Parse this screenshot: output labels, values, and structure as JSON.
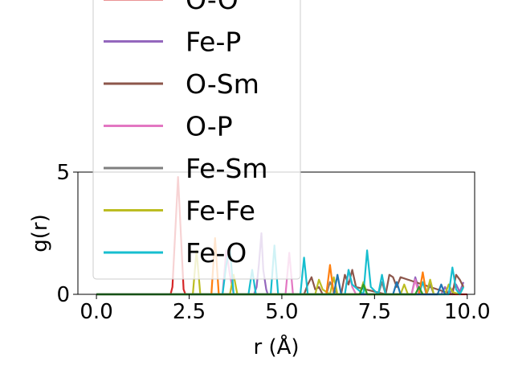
{
  "chart_data": {
    "type": "line",
    "title": "",
    "xlabel": "r (Å)",
    "ylabel": "g(r)",
    "xlim": [
      -0.5,
      10.2
    ],
    "ylim": [
      0,
      5
    ],
    "xticks": [
      "0.0",
      "2.5",
      "5.0",
      "7.5",
      "10.0"
    ],
    "yticks": [
      "0",
      "5"
    ],
    "grid": false,
    "legend_position": "upper-left (overflowing top of axes)",
    "series": [
      {
        "name": "O-O",
        "color": "#d62728",
        "x": [
          0,
          1.9,
          2.0,
          2.05,
          2.2,
          2.35,
          2.4,
          10
        ],
        "y": [
          0,
          0,
          0,
          0.3,
          4.8,
          0.2,
          0,
          0
        ]
      },
      {
        "name": "Fe-P",
        "color": "#9467bd",
        "x": [
          0,
          4.25,
          4.32,
          4.38,
          4.45,
          4.5,
          4.58,
          4.62,
          8.5,
          8.6,
          8.7,
          8.8,
          9.3,
          9.4,
          9.5,
          9.7,
          9.8,
          9.9
        ],
        "y": [
          0,
          0,
          0.3,
          1.2,
          2.5,
          1.0,
          0.2,
          0,
          0,
          0.7,
          0.2,
          0,
          0,
          0.3,
          0,
          0.4,
          0.1,
          0.5
        ]
      },
      {
        "name": "O-Sm",
        "color": "#8c564b",
        "x": [
          0,
          5.6,
          5.7,
          5.8,
          5.9,
          6.0,
          6.1,
          6.6,
          6.7,
          6.8,
          6.9,
          7.0,
          7.8,
          7.9,
          8.0,
          8.1,
          8.2,
          9.6,
          9.7,
          9.8,
          9.9
        ],
        "y": [
          0,
          0,
          0.4,
          0.7,
          0.2,
          0.3,
          0,
          0,
          0.8,
          0.4,
          1.0,
          0.3,
          0,
          0.8,
          0.7,
          0.3,
          0.7,
          0,
          0.8,
          0.6,
          0.3
        ]
      },
      {
        "name": "O-P",
        "color": "#e377c2",
        "x": [
          0,
          3.4,
          3.5,
          3.6,
          3.7,
          5.1,
          5.2,
          5.3,
          6.7,
          6.8,
          6.9,
          7.0,
          8.5,
          8.6,
          8.7
        ],
        "y": [
          0,
          0,
          1.8,
          0.8,
          0,
          0,
          1.7,
          0,
          0,
          1.0,
          0.3,
          0,
          0,
          0.6,
          0
        ]
      },
      {
        "name": "Fe-Sm",
        "color": "#7f7f7f",
        "x": [
          0,
          6.2,
          6.3,
          6.4,
          6.5,
          7.6,
          7.7,
          7.8,
          8.9,
          9.0,
          9.1
        ],
        "y": [
          0,
          0,
          0.5,
          0.2,
          0,
          0,
          0.5,
          0,
          0,
          0.4,
          0
        ]
      },
      {
        "name": "Fe-Fe",
        "color": "#bcbd22",
        "x": [
          0,
          2.6,
          2.7,
          2.8,
          3.6,
          3.7,
          3.8,
          5.9,
          6.0,
          6.1,
          6.3,
          6.4,
          6.5,
          7.1,
          7.2,
          7.3,
          8.2,
          8.3,
          8.4,
          8.9,
          9.0,
          9.1,
          9.4,
          9.5,
          9.6,
          9.8,
          9.9
        ],
        "y": [
          0,
          0,
          1.8,
          0,
          0,
          0.8,
          0,
          0,
          0.6,
          0.2,
          0,
          0.7,
          0,
          0,
          0.5,
          0,
          0,
          0.4,
          0,
          0,
          0.6,
          0,
          0,
          0.4,
          0.1,
          0,
          0.3
        ]
      },
      {
        "name": "Fe-O",
        "color": "#17becf",
        "x": [
          0,
          3.4,
          3.5,
          3.6,
          3.7,
          4.1,
          4.2,
          4.3,
          4.7,
          4.8,
          4.9,
          5.5,
          5.6,
          5.7,
          6.7,
          6.8,
          6.9,
          7.2,
          7.3,
          7.4,
          7.6,
          7.7,
          7.8,
          8.7,
          8.8,
          8.9,
          9.5,
          9.6,
          9.7,
          9.8,
          9.9
        ],
        "y": [
          0,
          0,
          1.2,
          1.9,
          0,
          0,
          1.0,
          0,
          0,
          2.0,
          0,
          0,
          1.5,
          0,
          0,
          1.0,
          0.4,
          0,
          1.8,
          0.3,
          0,
          0.8,
          0,
          0,
          0.5,
          0,
          0,
          1.1,
          0.2,
          0,
          0.3
        ]
      },
      {
        "name": "",
        "color": "#ff7f0e",
        "x": [
          0,
          3.1,
          3.2,
          3.3,
          6.2,
          6.3,
          6.4,
          8.7,
          8.8,
          8.9
        ],
        "y": [
          0,
          0,
          2.3,
          0,
          0,
          1.2,
          0,
          0,
          0.9,
          0
        ]
      },
      {
        "name": "",
        "color": "#1f77b4",
        "x": [
          0,
          6.4,
          6.5,
          6.6,
          8.0,
          8.1,
          8.2,
          9.2,
          9.3,
          9.4
        ],
        "y": [
          0,
          0,
          0.8,
          0,
          0,
          0.5,
          0,
          0,
          0.4,
          0
        ]
      },
      {
        "name": "",
        "color": "#2ca02c",
        "x": [
          0,
          7.1,
          7.2,
          7.3,
          8.6,
          8.7,
          8.8
        ],
        "y": [
          0,
          0,
          0.4,
          0,
          0,
          0.3,
          0
        ]
      }
    ]
  }
}
